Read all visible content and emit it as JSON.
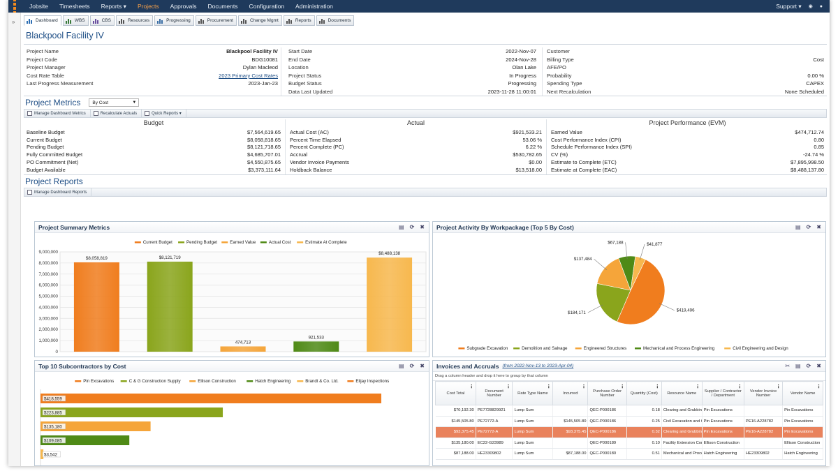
{
  "topnav": {
    "items": [
      "Jobsite",
      "Timesheets",
      "Reports ▾",
      "Projects",
      "Approvals",
      "Documents",
      "Configuration",
      "Administration"
    ],
    "active_index": 3,
    "support": "Support ▾"
  },
  "module_tabs": [
    "Dashboard",
    "WBS",
    "CBS",
    "Resources",
    "Progressing",
    "Procurement",
    "Change Mgmt",
    "Reports",
    "Documents"
  ],
  "project": {
    "title": "Blackpool Facility IV",
    "col1": [
      {
        "label": "Project Name",
        "value": "Blackpool Facility IV"
      },
      {
        "label": "Project Code",
        "value": "BDG10081"
      },
      {
        "label": "Project Manager",
        "value": "Dylan Macleod"
      },
      {
        "label": "Cost Rate Table",
        "value": "2023 Primary Cost Rates"
      },
      {
        "label": "Last Progress Measurement",
        "value": "2023-Jan-23"
      }
    ],
    "col2": [
      {
        "label": "Start Date",
        "value": "2022-Nov-07"
      },
      {
        "label": "End Date",
        "value": "2024-Nov-28"
      },
      {
        "label": "Location",
        "value": "Olan Lake"
      },
      {
        "label": "Project Status",
        "value": "In Progress"
      },
      {
        "label": "Budget Status",
        "value": "Progressing"
      },
      {
        "label": "Data Last Updated",
        "value": "2023-11-28 11:00:01"
      }
    ],
    "col3": [
      {
        "label": "Customer",
        "value": ""
      },
      {
        "label": "Billing Type",
        "value": "Cost"
      },
      {
        "label": "AFE/PO",
        "value": ""
      },
      {
        "label": "Probability",
        "value": "0.00 %"
      },
      {
        "label": "Spending Type",
        "value": "CAPEX"
      },
      {
        "label": "Next Recalculation",
        "value": "None Scheduled"
      }
    ]
  },
  "metrics": {
    "title": "Project Metrics",
    "select": "By Cost",
    "toolbar": [
      "Manage Dashboard Metrics",
      "Recalculate Actuals",
      "Quick Reports ▾"
    ],
    "budget": {
      "heading": "Budget",
      "rows": [
        {
          "label": "Baseline Budget",
          "value": "$7,564,619.65"
        },
        {
          "label": "Current Budget",
          "value": "$8,058,818.65"
        },
        {
          "label": "Pending Budget",
          "value": "$8,121,718.65"
        },
        {
          "label": "Fully Committed Budget",
          "value": "$4,685,707.01"
        },
        {
          "label": "PO Commitment (Net)",
          "value": "$4,550,875.65"
        },
        {
          "label": "Budget Available",
          "value": "$3,373,111.64"
        }
      ]
    },
    "actual": {
      "heading": "Actual",
      "rows": [
        {
          "label": "Actual Cost (AC)",
          "value": "$921,533.21"
        },
        {
          "label": "Percent Time Elapsed",
          "value": "53.06 %"
        },
        {
          "label": "Percent Complete (PC)",
          "value": "6.22 %"
        },
        {
          "label": "Accrual",
          "value": "$530,782.65"
        },
        {
          "label": "Vendor Invoice Payments",
          "value": "$0.00"
        },
        {
          "label": "Holdback Balance",
          "value": "$13,518.00"
        }
      ]
    },
    "evm": {
      "heading": "Project Performance (EVM)",
      "rows": [
        {
          "label": "Earned Value",
          "value": "$474,712.74"
        },
        {
          "label": "Cost Performance Index (CPI)",
          "value": "0.80"
        },
        {
          "label": "Schedule Performance Index (SPI)",
          "value": "0.85"
        },
        {
          "label": "CV (%)",
          "value": "-24.74 %"
        },
        {
          "label": "Estimate to Complete (ETC)",
          "value": "$7,895,998.50"
        },
        {
          "label": "Estimate at Complete (EAC)",
          "value": "$8,488,137.80"
        }
      ]
    }
  },
  "reports": {
    "title": "Project Reports",
    "toolbar": [
      "Manage Dashboard Reports"
    ]
  },
  "panels": {
    "summary": {
      "title": "Project Summary Metrics"
    },
    "activity": {
      "title": "Project Activity By Workpackage (Top 5 By Cost)"
    },
    "subcontractors": {
      "title": "Top 10 Subcontractors by Cost"
    },
    "invoices": {
      "title": "Invoices and Accruals",
      "subtitle": "(from 2022-Nov-13 to 2023-Apr-04)",
      "group_hint": "Drag a column header and drop it here to group by that column"
    }
  },
  "colors": {
    "orange": "#f07d1e",
    "olive": "#8aa51c",
    "lightorange": "#f5a53a",
    "darkgreen": "#4f8a16",
    "peach": "#f7b84e",
    "navy": "#1f3a5c",
    "accent": "#1f4f86"
  },
  "chart_data": [
    {
      "type": "bar",
      "title": "Project Summary Metrics",
      "categories": [
        "Current Budget",
        "Pending Budget",
        "Earned Value",
        "Actual Cost",
        "Estimate At Complete"
      ],
      "values": [
        8058819,
        8121719,
        474713,
        921533,
        8488138
      ],
      "labels": [
        "$8,058,819",
        "$8,121,719",
        "474,713",
        "921,533",
        "$8,488,138"
      ],
      "yticks": [
        "9,000,000",
        "8,000,000",
        "7,000,000",
        "6,000,000",
        "5,000,000",
        "4,000,000",
        "3,000,000",
        "2,000,000",
        "1,000,000",
        "0"
      ],
      "ylim": [
        0,
        9000000
      ],
      "legend_position": "top",
      "grid": true
    },
    {
      "type": "pie",
      "title": "Project Activity By Workpackage (Top 5 By Cost)",
      "categories": [
        "Subgrade Excavation",
        "Demolition and Salvage",
        "Engineered Structures",
        "Mechanical and Process Engineering",
        "Civil Engineering and Design"
      ],
      "values": [
        419496,
        184171,
        137484,
        67188,
        41877
      ],
      "labels": [
        "$419,496",
        "$184,171",
        "$137,484",
        "$67,188",
        "$41,877"
      ],
      "legend_position": "bottom"
    },
    {
      "type": "bar",
      "orientation": "horizontal",
      "title": "Top 10 Subcontractors by Cost",
      "categories": [
        "Pin Excavations",
        "C & G Construction Supply",
        "Ellison Construction",
        "Hatch Engineering",
        "Brandt & Co. Ltd.",
        "Elijay Inspections"
      ],
      "values": [
        418559,
        223885,
        135180,
        109085,
        3542,
        0
      ],
      "labels": [
        "$418,559",
        "$223,885",
        "$135,180",
        "$109,085",
        "$3,542"
      ],
      "legend_position": "top"
    }
  ],
  "invoices_table": {
    "columns": [
      "Cost Total",
      "Document Number",
      "Rate Type Name",
      "Incurred",
      "Purchase Order Number",
      "Quantity (Cost)",
      "Resource Name",
      "Supplier / Contractor / Department",
      "Vendor Invoice Number",
      "Vendor Name"
    ],
    "rows": [
      [
        "$70,192.30",
        "PE7728829921",
        "Lump Sum",
        "",
        "QEC-P000186",
        "0.18",
        "Clearing and Grubbing",
        "Pin Excavations",
        "",
        "Pin Excavations"
      ],
      [
        "$145,505.80",
        "PE72772-A",
        "Lump Sum",
        "$145,505.80",
        "QEC-P000186",
        "0.25",
        "Civil Excavation and Grading",
        "Pin Excavations",
        "PE16-A228782",
        "Pin Excavations"
      ],
      [
        "$93,375.45",
        "PE72772-A",
        "Lump Sum",
        "$93,375.45",
        "QEC-P000186",
        "0.32",
        "Clearing and Grubbing",
        "Pin Excavations",
        "PE16-A228782",
        "Pin Excavations"
      ],
      [
        "$135,180.00",
        "EC22-G23989",
        "Lump Sum",
        "",
        "QEC-P000189",
        "0.10",
        "Facility Extension Construction",
        "Ellison Construction",
        "",
        "Ellison Construction"
      ],
      [
        "$87,188.00",
        "HE23309802",
        "Lump Sum",
        "$87,188.00",
        "QEC-P000180",
        "0.51",
        "Mechanical and Process Engineering",
        "Hatch Engineering",
        "HE23309802",
        "Hatch Engineering"
      ]
    ],
    "highlight_row": 2
  }
}
